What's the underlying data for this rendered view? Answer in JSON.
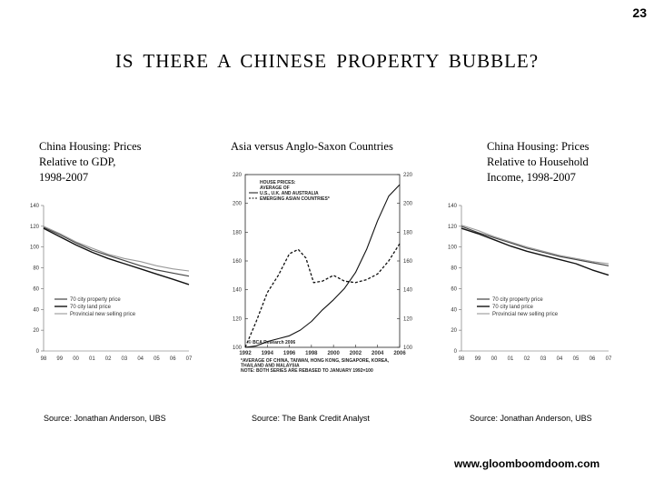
{
  "page": {
    "number": "23",
    "title": "IS THERE A CHINESE PROPERTY BUBBLE?",
    "website": "www.gloomboomdoom.com"
  },
  "chart_data": [
    {
      "type": "line",
      "title_lines": [
        "China Housing: Prices",
        "Relative to GDP,",
        "1998-2007"
      ],
      "source": "Source: Jonathan Anderson, UBS",
      "x": [
        1998,
        1999,
        2000,
        2001,
        2002,
        2003,
        2004,
        2005,
        2006,
        2007
      ],
      "x_tick_labels": [
        "98",
        "99",
        "00",
        "01",
        "02",
        "03",
        "04",
        "05",
        "06",
        "07"
      ],
      "ylim": [
        0,
        140
      ],
      "y_ticks": [
        0,
        20,
        40,
        60,
        80,
        100,
        120,
        140
      ],
      "series": [
        {
          "name": "70 city property price",
          "values": [
            119,
            112,
            104,
            97,
            92,
            87,
            82,
            78,
            75,
            72
          ],
          "color": "#444444",
          "width": 1.2
        },
        {
          "name": "70 city land price",
          "values": [
            118,
            110,
            102,
            95,
            89,
            84,
            79,
            74,
            69,
            64
          ],
          "color": "#111111",
          "width": 1.4
        },
        {
          "name": "Provincial new selling price",
          "values": [
            120,
            113,
            105,
            99,
            93,
            89,
            86,
            82,
            79,
            77
          ],
          "color": "#999999",
          "width": 1.1
        }
      ]
    },
    {
      "type": "line",
      "title_lines": [
        "Asia versus Anglo-Saxon Countries"
      ],
      "source": "Source: The Bank Credit Analyst",
      "x_tick_labels": [
        "1992",
        "1994",
        "1996",
        "1998",
        "2000",
        "2002",
        "2004",
        "2006"
      ],
      "xlim": [
        1992,
        2006
      ],
      "ylim": [
        100,
        220
      ],
      "y_ticks": [
        100,
        120,
        140,
        160,
        180,
        200,
        220
      ],
      "legend_heading": [
        "HOUSE PRICES:",
        "AVERAGE OF"
      ],
      "annotation": "© BCA Research 2006",
      "footnote_lines": [
        "*AVERAGE OF CHINA, TAIWAN, HONG KONG, SINGAPORE, KOREA,",
        "THAILAND AND MALAYSIA",
        "NOTE: BOTH SERIES ARE REBASED TO JANUARY 1992=100"
      ],
      "series": [
        {
          "name": "U.S., U.K. AND AUSTRALIA",
          "dash": false,
          "x": [
            1992,
            1993,
            1994,
            1995,
            1996,
            1997,
            1998,
            1999,
            2000,
            2001,
            2002,
            2003,
            2004,
            2005,
            2006
          ],
          "values": [
            100,
            101,
            104,
            106,
            108,
            112,
            118,
            126,
            133,
            141,
            152,
            168,
            188,
            205,
            213
          ]
        },
        {
          "name": "EMERGING ASIAN COUNTRIES*",
          "dash": true,
          "x": [
            1992,
            1993,
            1994,
            1995,
            1996,
            1996.8,
            1997.5,
            1998.2,
            1999,
            2000,
            2001,
            2002,
            2003,
            2004,
            2005,
            2006
          ],
          "values": [
            100,
            118,
            138,
            150,
            165,
            168,
            162,
            145,
            146,
            150,
            146,
            145,
            147,
            151,
            160,
            172
          ]
        }
      ]
    },
    {
      "type": "line",
      "title_lines": [
        "China Housing: Prices",
        "Relative to Household",
        "Income, 1998-2007"
      ],
      "source": "Source: Jonathan Anderson, UBS",
      "x": [
        1998,
        1999,
        2000,
        2001,
        2002,
        2003,
        2004,
        2005,
        2006,
        2007
      ],
      "x_tick_labels": [
        "98",
        "99",
        "00",
        "01",
        "02",
        "03",
        "04",
        "05",
        "06",
        "07"
      ],
      "ylim": [
        0,
        140
      ],
      "y_ticks": [
        0,
        20,
        40,
        60,
        80,
        100,
        120,
        140
      ],
      "series": [
        {
          "name": "70 city property price",
          "values": [
            120,
            114,
            109,
            104,
            99,
            95,
            91,
            88,
            85,
            82
          ],
          "color": "#444444",
          "width": 1.2
        },
        {
          "name": "70 city land price",
          "values": [
            118,
            113,
            107,
            101,
            96,
            92,
            88,
            84,
            78,
            73
          ],
          "color": "#111111",
          "width": 1.4
        },
        {
          "name": "Provincial new selling price",
          "values": [
            121,
            116,
            110,
            105,
            100,
            96,
            92,
            89,
            86,
            84
          ],
          "color": "#999999",
          "width": 1.1
        }
      ]
    }
  ]
}
